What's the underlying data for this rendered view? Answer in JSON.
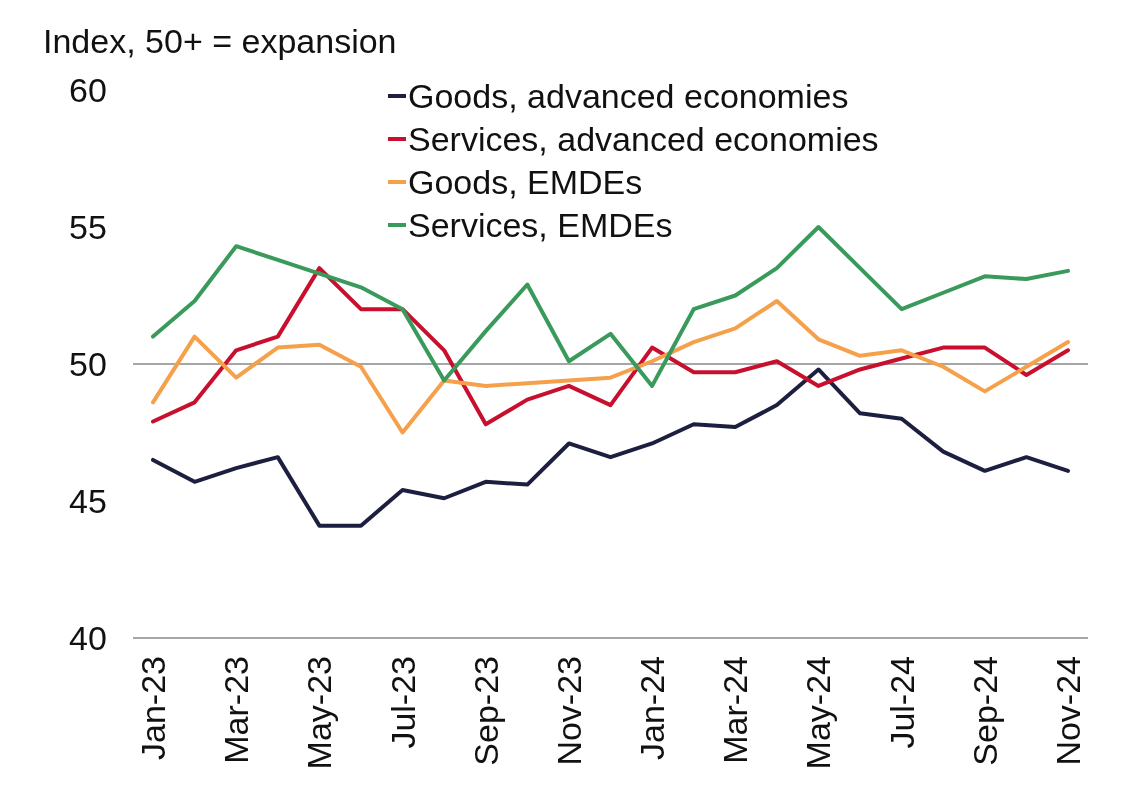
{
  "chart_data": {
    "type": "line",
    "ylabel": "Index, 50+ = expansion",
    "categories": [
      "Jan-23",
      null,
      "Mar-23",
      null,
      "May-23",
      null,
      "Jul-23",
      null,
      "Sep-23",
      null,
      "Nov-23",
      null,
      "Jan-24",
      null,
      "Mar-24",
      null,
      "May-24",
      null,
      "Jul-24",
      null,
      "Sep-24",
      null,
      "Nov-24"
    ],
    "series": [
      {
        "name": "Goods, advanced economies",
        "color": "#1c1f3f",
        "values": [
          46.5,
          45.7,
          46.2,
          46.6,
          44.1,
          44.1,
          45.4,
          45.1,
          45.7,
          45.6,
          47.1,
          46.6,
          47.1,
          47.8,
          47.7,
          48.5,
          49.8,
          48.2,
          48.0,
          46.8,
          46.1,
          46.6,
          46.1
        ]
      },
      {
        "name": "Services, advanced economies",
        "color": "#c8102e",
        "values": [
          47.9,
          48.6,
          50.5,
          51.0,
          53.5,
          52.0,
          52.0,
          50.5,
          47.8,
          48.7,
          49.2,
          48.5,
          50.6,
          49.7,
          49.7,
          50.1,
          49.2,
          49.8,
          50.2,
          50.6,
          50.6,
          49.6,
          50.5
        ]
      },
      {
        "name": "Goods, EMDEs",
        "color": "#f5a04a",
        "values": [
          48.6,
          51.0,
          49.5,
          50.6,
          50.7,
          49.9,
          47.5,
          49.4,
          49.2,
          49.3,
          49.4,
          49.5,
          50.1,
          50.8,
          51.3,
          52.3,
          50.9,
          50.3,
          50.5,
          49.9,
          49.0,
          49.9,
          50.8
        ]
      },
      {
        "name": "Services, EMDEs",
        "color": "#3a9a5b",
        "values": [
          51.0,
          52.3,
          54.3,
          53.8,
          53.3,
          52.8,
          52.0,
          49.4,
          51.2,
          52.9,
          50.1,
          51.1,
          49.2,
          52.0,
          52.5,
          53.5,
          55.0,
          53.5,
          52.0,
          52.6,
          53.2,
          53.1,
          53.4
        ]
      }
    ],
    "ylim": [
      40,
      60
    ],
    "yticks": [
      40,
      45,
      50,
      55,
      60
    ],
    "ref_lines": [
      {
        "axis": "y",
        "value": 50,
        "color": "#a6a6a6"
      }
    ],
    "legend": "top",
    "grid": false
  }
}
